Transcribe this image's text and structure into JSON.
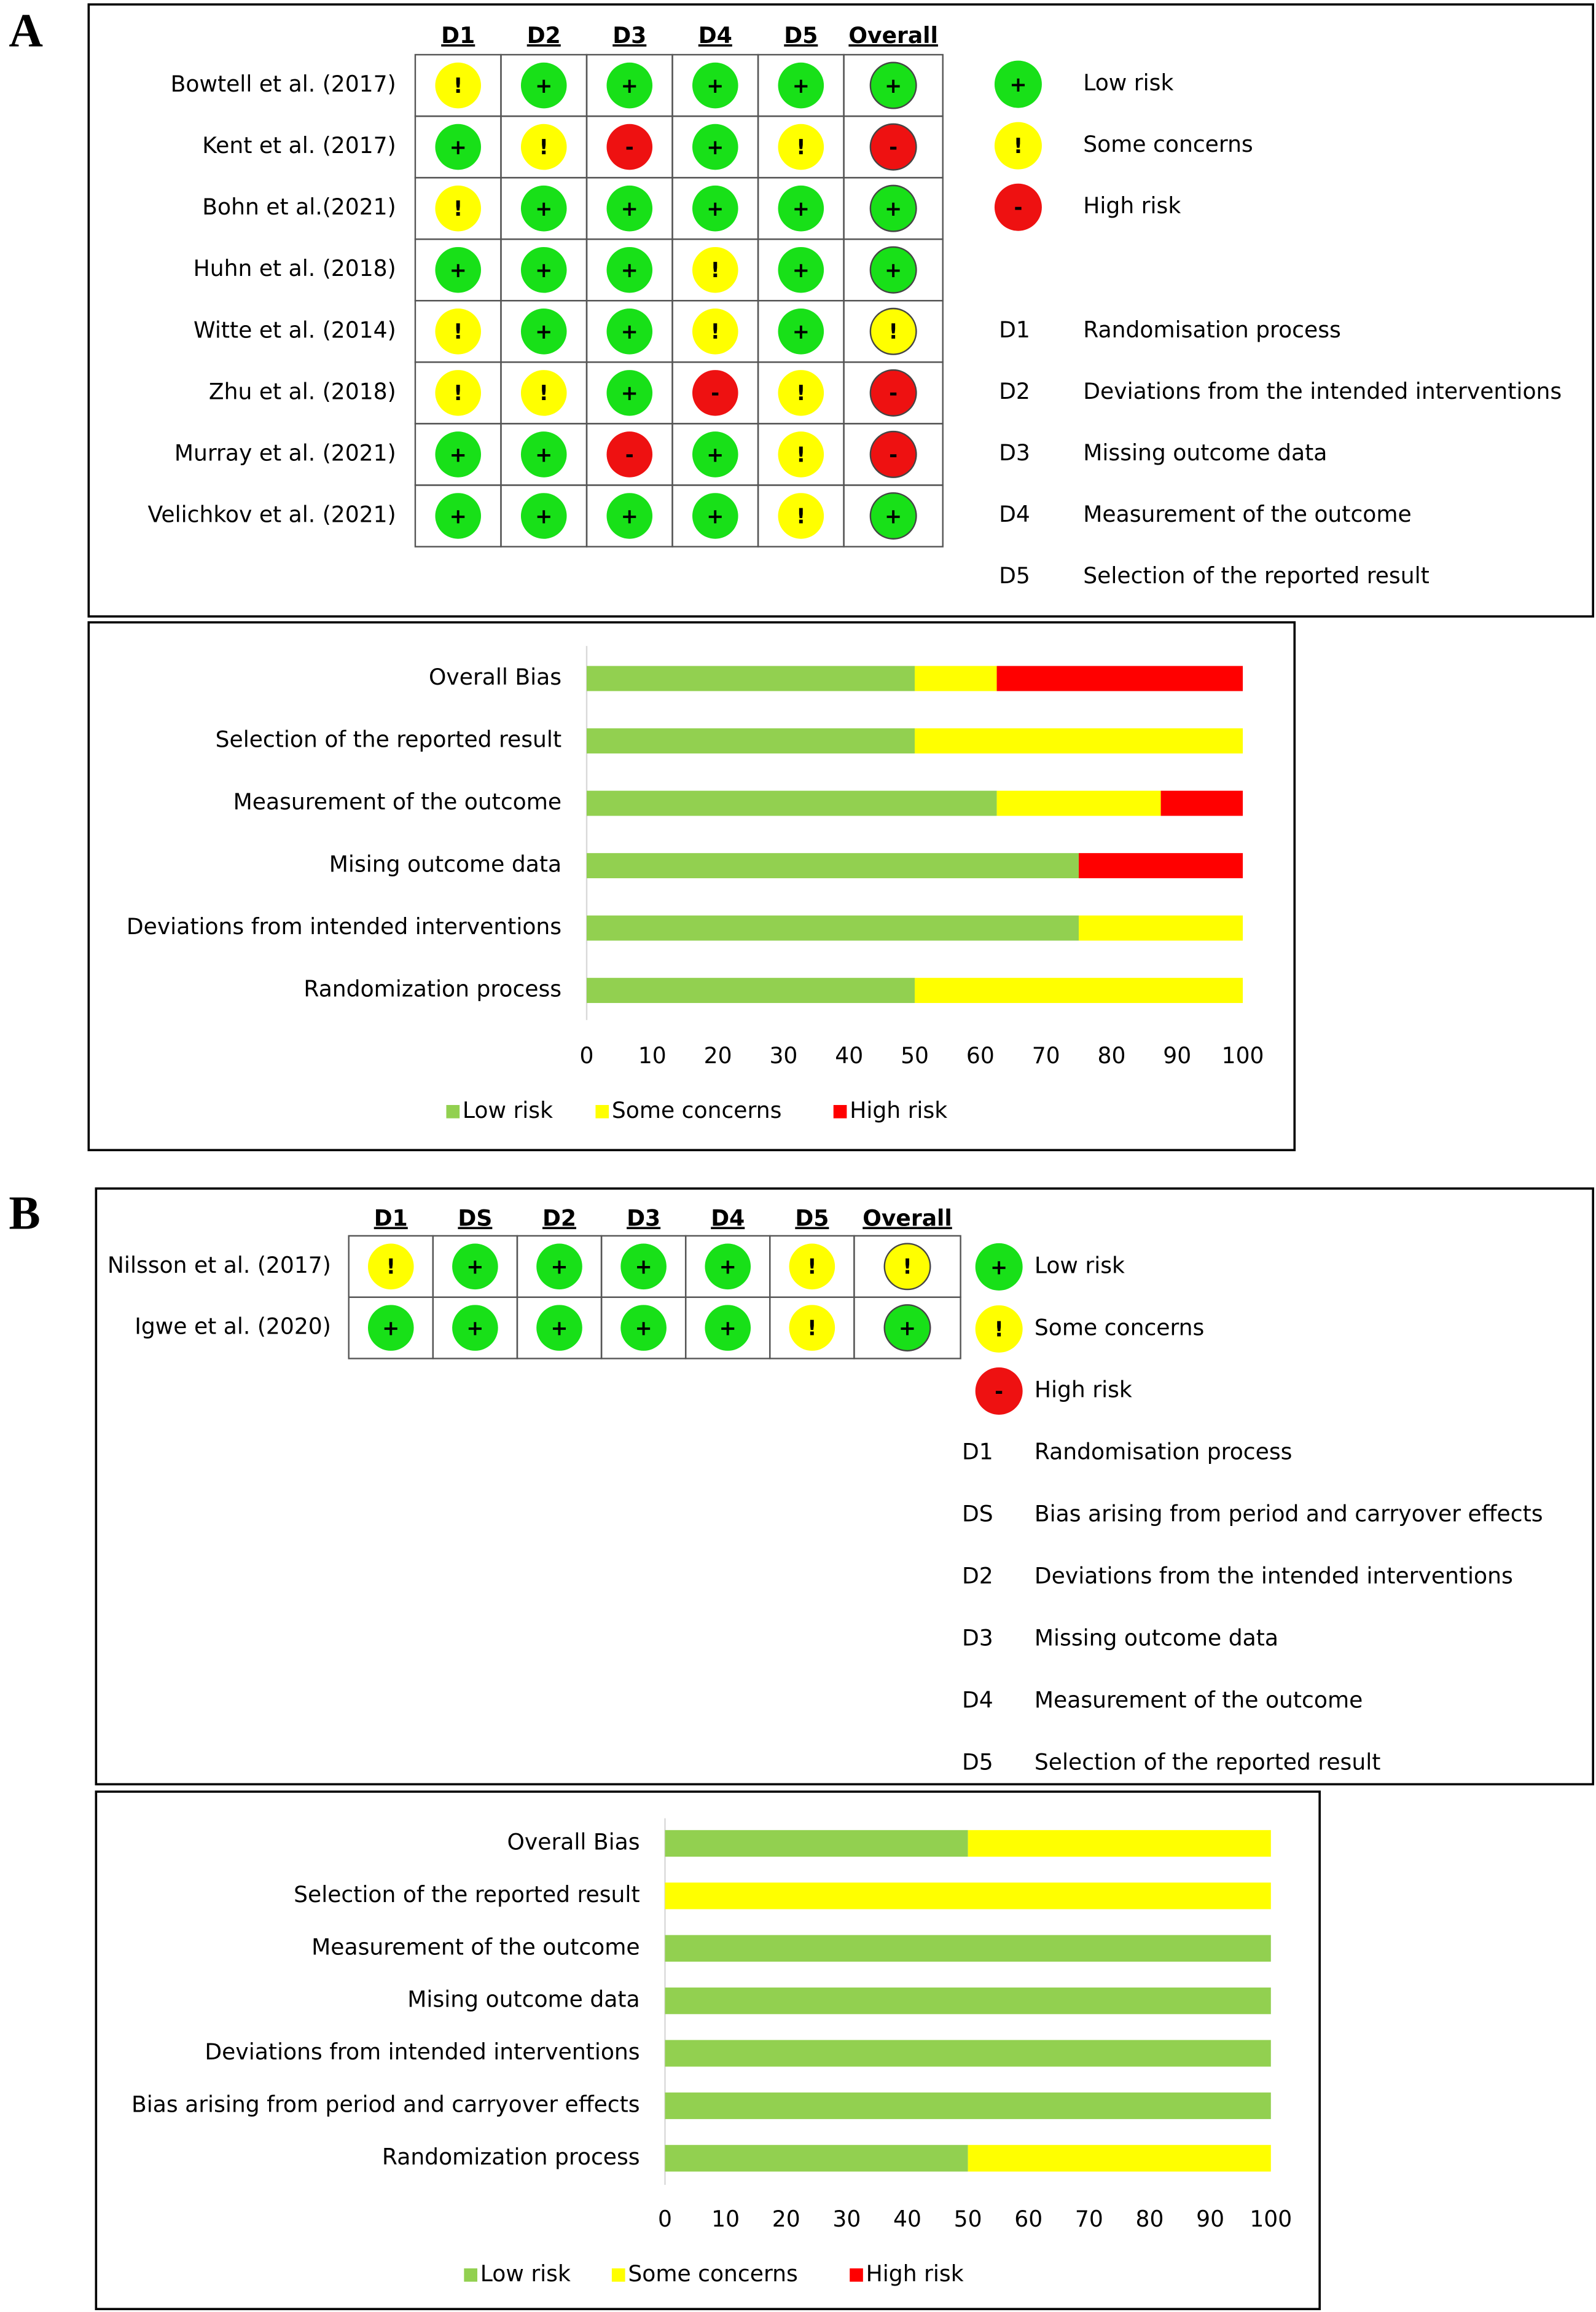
{
  "panels": [
    {
      "label": "A",
      "traffic_light": {
        "columns": [
          "D1",
          "D2",
          "D3",
          "D4",
          "D5",
          "Overall"
        ],
        "rows": [
          {
            "study": "Bowtell et al. (2017)",
            "judgements": [
              "!",
              "+",
              "+",
              "+",
              "+",
              "+"
            ]
          },
          {
            "study": "Kent et al. (2017)",
            "judgements": [
              "+",
              "!",
              "-",
              "+",
              "!",
              "-"
            ]
          },
          {
            "study": "Bohn et al.(2021)",
            "judgements": [
              "!",
              "+",
              "+",
              "+",
              "+",
              "+"
            ]
          },
          {
            "study": "Huhn et al. (2018)",
            "judgements": [
              "+",
              "+",
              "+",
              "!",
              "+",
              "+"
            ]
          },
          {
            "study": "Witte et al. (2014)",
            "judgements": [
              "!",
              "+",
              "+",
              "!",
              "+",
              "!"
            ]
          },
          {
            "study": "Zhu et al. (2018)",
            "judgements": [
              "!",
              "!",
              "+",
              "-",
              "!",
              "-"
            ]
          },
          {
            "study": "Murray et al. (2021)",
            "judgements": [
              "+",
              "+",
              "-",
              "+",
              "!",
              "-"
            ]
          },
          {
            "study": "Velichkov et al. (2021)",
            "judgements": [
              "+",
              "+",
              "+",
              "+",
              "!",
              "+"
            ]
          }
        ],
        "legend": [
          {
            "symbol": "+",
            "label": "Low risk",
            "color": "#18e018"
          },
          {
            "symbol": "!",
            "label": "Some concerns",
            "color": "#ffff00"
          },
          {
            "symbol": "-",
            "label": "High risk",
            "color": "#ee1111"
          }
        ],
        "domains": [
          {
            "code": "D1",
            "name": "Randomisation process"
          },
          {
            "code": "D2",
            "name": "Deviations from the intended interventions"
          },
          {
            "code": "D3",
            "name": "Missing outcome data"
          },
          {
            "code": "D4",
            "name": "Measurement of the outcome"
          },
          {
            "code": "D5",
            "name": "Selection of the reported result"
          }
        ]
      }
    },
    {
      "label": "B",
      "traffic_light": {
        "columns": [
          "D1",
          "DS",
          "D2",
          "D3",
          "D4",
          "D5",
          "Overall"
        ],
        "rows": [
          {
            "study": "Nilsson et al. (2017)",
            "judgements": [
              "!",
              "+",
              "+",
              "+",
              "+",
              "!",
              "!"
            ]
          },
          {
            "study": "Igwe et al. (2020)",
            "judgements": [
              "+",
              "+",
              "+",
              "+",
              "+",
              "!",
              "+"
            ]
          }
        ],
        "legend": [
          {
            "symbol": "+",
            "label": "Low risk",
            "color": "#18e018"
          },
          {
            "symbol": "!",
            "label": "Some concerns",
            "color": "#ffff00"
          },
          {
            "symbol": "-",
            "label": "High risk",
            "color": "#ee1111"
          }
        ],
        "domains": [
          {
            "code": "D1",
            "name": "Randomisation process"
          },
          {
            "code": "DS",
            "name": "Bias arising from period and carryover effects"
          },
          {
            "code": "D2",
            "name": "Deviations from the intended interventions"
          },
          {
            "code": "D3",
            "name": "Missing outcome data"
          },
          {
            "code": "D4",
            "name": "Measurement of the outcome"
          },
          {
            "code": "D5",
            "name": "Selection of the reported result"
          }
        ]
      }
    }
  ],
  "chart_data": [
    {
      "type": "bar",
      "orientation": "horizontal",
      "stacked": true,
      "categories": [
        "Overall Bias",
        "Selection of the reported result",
        "Measurement of the outcome",
        "Mising outcome data",
        "Deviations from intended interventions",
        "Randomization process"
      ],
      "series": [
        {
          "name": "Low risk",
          "color": "#92d050",
          "values": [
            50,
            50,
            62.5,
            75,
            75,
            50
          ]
        },
        {
          "name": "Some concerns",
          "color": "#ffff00",
          "values": [
            12.5,
            50,
            25,
            0,
            25,
            50
          ]
        },
        {
          "name": "High risk",
          "color": "#ff0000",
          "values": [
            37.5,
            0,
            12.5,
            25,
            0,
            0
          ]
        }
      ],
      "xlim": [
        0,
        100
      ],
      "xticks": [
        0,
        10,
        20,
        30,
        40,
        50,
        60,
        70,
        80,
        90,
        100
      ],
      "legend": "bottom"
    },
    {
      "type": "bar",
      "orientation": "horizontal",
      "stacked": true,
      "categories": [
        "Overall Bias",
        "Selection of the reported result",
        "Measurement of the outcome",
        "Mising outcome data",
        "Deviations from intended interventions",
        "Bias arising from period and carryover effects",
        "Randomization process"
      ],
      "series": [
        {
          "name": "Low risk",
          "color": "#92d050",
          "values": [
            50,
            0,
            100,
            100,
            100,
            100,
            50
          ]
        },
        {
          "name": "Some concerns",
          "color": "#ffff00",
          "values": [
            50,
            100,
            0,
            0,
            0,
            0,
            50
          ]
        },
        {
          "name": "High risk",
          "color": "#ff0000",
          "values": [
            0,
            0,
            0,
            0,
            0,
            0,
            0
          ]
        }
      ],
      "xlim": [
        0,
        100
      ],
      "xticks": [
        0,
        10,
        20,
        30,
        40,
        50,
        60,
        70,
        80,
        90,
        100
      ],
      "legend": "bottom"
    }
  ]
}
